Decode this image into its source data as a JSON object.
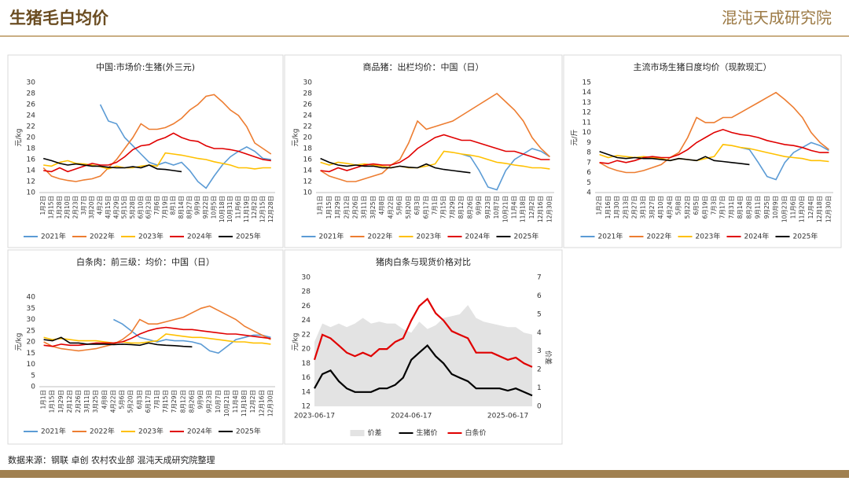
{
  "header": {
    "title": "生猪毛白均价",
    "logo": "混沌天成研究院"
  },
  "footer": {
    "source": "数据来源：钢联 卓创 农村农业部 混沌天成研究院整理"
  },
  "chart_data": [
    {
      "type": "line",
      "title": "中国:市场价:生猪(外三元)",
      "ylabel": "元/kg",
      "ylim": [
        10,
        30
      ],
      "yticks": [
        10,
        12,
        14,
        16,
        18,
        20,
        22,
        24,
        26,
        28,
        30
      ],
      "categories": [
        "1月2日",
        "1月15日",
        "1月28日",
        "2月10日",
        "2月23日",
        "3月7日",
        "3月20日",
        "4月2日",
        "4月15日",
        "4月29日",
        "5月15日",
        "5月28日",
        "6月10日",
        "6月23日",
        "7月6日",
        "7月19日",
        "8月1日",
        "8月14日",
        "8月27日",
        "9月9日",
        "9月22日",
        "10月5日",
        "10月18日",
        "10月31日",
        "11月6日",
        "11月19日",
        "12月2日",
        "12月15日",
        "12月28日"
      ],
      "series": [
        {
          "name": "2021年",
          "color": "#5b9bd5",
          "values": [
            null,
            null,
            null,
            null,
            null,
            null,
            null,
            26,
            23,
            22.5,
            20,
            18.5,
            17,
            15.5,
            15,
            15.5,
            15,
            15.5,
            14,
            12,
            10.8,
            13,
            15,
            16.5,
            17.5,
            18.3,
            17.5,
            16.2,
            16
          ]
        },
        {
          "name": "2022年",
          "color": "#ed7d31",
          "values": [
            14.5,
            13,
            12.5,
            12.2,
            12,
            12.3,
            12.5,
            13,
            14.5,
            16,
            18,
            20,
            22.5,
            21.5,
            21.5,
            21.8,
            22.5,
            23.5,
            25,
            26,
            27.5,
            27.8,
            26.5,
            25,
            24,
            22,
            19,
            18,
            17
          ]
        },
        {
          "name": "2023年",
          "color": "#ffc000",
          "values": [
            15,
            14.8,
            15.5,
            15.8,
            15.3,
            15.2,
            15,
            14.7,
            14.3,
            14.8,
            14.5,
            14.5,
            14.8,
            15,
            14.8,
            17.2,
            17,
            16.8,
            16.5,
            16.2,
            16,
            15.6,
            15.3,
            15,
            14.5,
            14.5,
            14.3,
            14.5,
            14.5
          ]
        },
        {
          "name": "2024年",
          "color": "#e00000",
          "values": [
            14,
            13.8,
            14.5,
            13.8,
            14.3,
            14.8,
            15.3,
            15,
            15,
            15.5,
            16.5,
            17.8,
            18.5,
            18.7,
            19.5,
            20,
            20.8,
            20,
            19.5,
            19.3,
            18.5,
            18,
            18,
            17.8,
            17.5,
            17,
            16.5,
            16,
            15.8
          ]
        },
        {
          "name": "2025年",
          "color": "#000000",
          "values": [
            16.2,
            15.8,
            15.3,
            15,
            15.2,
            15,
            14.8,
            14.8,
            14.6,
            14.5,
            14.5,
            14.7,
            14.5,
            15,
            14.3,
            14.2,
            14,
            13.8,
            null,
            null,
            null,
            null,
            null,
            null,
            null,
            null,
            null,
            null,
            null
          ]
        }
      ]
    },
    {
      "type": "line",
      "title": "商品猪：出栏均价：中国（日）",
      "ylabel": "元/kg",
      "ylim": [
        10,
        30
      ],
      "yticks": [
        10,
        12,
        14,
        16,
        18,
        20,
        22,
        24,
        26,
        28,
        30
      ],
      "categories": [
        "1月1日",
        "1月15日",
        "1月29日",
        "2月12日",
        "2月26日",
        "3月11日",
        "3月25日",
        "4月8日",
        "4月22日",
        "5月6日",
        "5月20日",
        "6月3日",
        "6月17日",
        "7月1日",
        "7月15日",
        "7月29日",
        "8月12日",
        "8月26日",
        "9月9日",
        "9月23日",
        "10月7日",
        "10月21日",
        "11月4日",
        "11月18日",
        "12月2日",
        "12月16日",
        "12月30日"
      ],
      "series": [
        {
          "name": "2021年",
          "color": "#5b9bd5",
          "values": [
            null,
            null,
            null,
            null,
            null,
            null,
            null,
            null,
            null,
            null,
            null,
            null,
            null,
            null,
            null,
            null,
            17,
            16.5,
            14,
            11,
            10.5,
            14,
            16,
            17,
            18,
            17.5,
            16.5
          ]
        },
        {
          "name": "2022年",
          "color": "#ed7d31",
          "values": [
            14,
            13,
            12.5,
            12,
            12,
            12.5,
            13,
            13.5,
            15,
            16,
            19,
            23,
            21.5,
            22,
            22.5,
            23,
            24,
            25,
            26,
            27,
            28,
            26.5,
            25,
            23,
            20,
            18,
            16.5
          ]
        },
        {
          "name": "2023年",
          "color": "#ffc000",
          "values": [
            15.5,
            15,
            15.5,
            15.3,
            15,
            15.2,
            15,
            14.8,
            14.5,
            14.8,
            14.5,
            14.5,
            14.8,
            15.2,
            17.5,
            17.3,
            17,
            16.8,
            16.5,
            16,
            15.5,
            15.3,
            15,
            14.8,
            14.5,
            14.5,
            14.3
          ]
        },
        {
          "name": "2024年",
          "color": "#e00000",
          "values": [
            14,
            13.8,
            14.5,
            14,
            14.5,
            15,
            15.2,
            15,
            15,
            15.5,
            16.5,
            18,
            19,
            20,
            20.5,
            20,
            19.5,
            19.5,
            19,
            18.5,
            18,
            17.5,
            17.5,
            17,
            16.5,
            16,
            16
          ]
        },
        {
          "name": "2025年",
          "color": "#000000",
          "values": [
            16.2,
            15.5,
            15,
            14.8,
            15,
            14.8,
            14.8,
            14.5,
            14.5,
            14.8,
            14.6,
            14.5,
            15.2,
            14.5,
            14.2,
            14,
            13.8,
            13.6,
            null,
            null,
            null,
            null,
            null,
            null,
            null,
            null,
            null
          ]
        }
      ]
    },
    {
      "type": "line",
      "title": "主流市场生猪日度均价（现款现汇）",
      "ylabel": "元/斤",
      "ylim": [
        4,
        15
      ],
      "yticks": [
        4,
        5,
        6,
        7,
        8,
        9,
        10,
        11,
        12,
        13,
        14,
        15
      ],
      "categories": [
        "1月2日",
        "1月16日",
        "1月30日",
        "2月13日",
        "2月27日",
        "3月13日",
        "3月27日",
        "4月10日",
        "4月24日",
        "5月8日",
        "5月22日",
        "6月5日",
        "6月19日",
        "7月3日",
        "7月17日",
        "7月31日",
        "8月14日",
        "8月28日",
        "9月11日",
        "9月25日",
        "10月9日",
        "10月23日",
        "11月6日",
        "11月20日",
        "12月4日",
        "12月18日",
        "12月30日"
      ],
      "series": [
        {
          "name": "2021年",
          "color": "#5b9bd5",
          "values": [
            null,
            null,
            null,
            null,
            null,
            null,
            null,
            null,
            null,
            null,
            null,
            null,
            null,
            null,
            null,
            null,
            8.5,
            8.3,
            7,
            5.6,
            5.3,
            7,
            8,
            8.5,
            9,
            8.7,
            8.2
          ]
        },
        {
          "name": "2022年",
          "color": "#ed7d31",
          "values": [
            7,
            6.5,
            6.2,
            6,
            6,
            6.2,
            6.5,
            6.8,
            7.5,
            8,
            9.5,
            11.5,
            11,
            11,
            11.5,
            11.5,
            12,
            12.5,
            13,
            13.5,
            14,
            13.3,
            12.5,
            11.5,
            10,
            9,
            8.3
          ]
        },
        {
          "name": "2023年",
          "color": "#ffc000",
          "values": [
            7.8,
            7.5,
            7.7,
            7.6,
            7.5,
            7.6,
            7.5,
            7.4,
            7.2,
            7.4,
            7.3,
            7.2,
            7.4,
            7.6,
            8.8,
            8.7,
            8.5,
            8.4,
            8.2,
            8,
            7.8,
            7.6,
            7.5,
            7.4,
            7.2,
            7.2,
            7.1
          ]
        },
        {
          "name": "2024年",
          "color": "#e00000",
          "values": [
            7,
            6.9,
            7.2,
            7,
            7.2,
            7.5,
            7.6,
            7.5,
            7.5,
            7.8,
            8.3,
            9,
            9.5,
            10,
            10.3,
            10,
            9.8,
            9.7,
            9.5,
            9.2,
            9,
            8.8,
            8.7,
            8.5,
            8.2,
            8,
            8
          ]
        },
        {
          "name": "2025年",
          "color": "#000000",
          "values": [
            8.1,
            7.8,
            7.5,
            7.4,
            7.5,
            7.4,
            7.4,
            7.3,
            7.2,
            7.4,
            7.3,
            7.2,
            7.6,
            7.2,
            7.1,
            7,
            6.9,
            6.8,
            null,
            null,
            null,
            null,
            null,
            null,
            null,
            null,
            null
          ]
        }
      ]
    },
    {
      "type": "line",
      "title": "白条肉：前三级：均价：中国（日）",
      "ylabel": "元/kg",
      "ylim": [
        0,
        40
      ],
      "yticks": [
        0,
        5,
        10,
        15,
        20,
        25,
        30,
        35,
        40
      ],
      "categories": [
        "1月1日",
        "1月15日",
        "1月29日",
        "2月12日",
        "2月26日",
        "3月11日",
        "3月25日",
        "4月8日",
        "4月22日",
        "5月6日",
        "5月20日",
        "6月3日",
        "6月17日",
        "7月1日",
        "7月15日",
        "7月29日",
        "8月12日",
        "8月26日",
        "9月9日",
        "9月23日",
        "10月7日",
        "10月21日",
        "11月4日",
        "11月18日",
        "12月2日",
        "12月16日",
        "12月30日"
      ],
      "series": [
        {
          "name": "2021年",
          "color": "#5b9bd5",
          "values": [
            null,
            null,
            null,
            null,
            null,
            null,
            null,
            null,
            30,
            28,
            25,
            22,
            21,
            20,
            21,
            20.5,
            20.5,
            20,
            19,
            16,
            15,
            18,
            21,
            22,
            23,
            23,
            22
          ]
        },
        {
          "name": "2022年",
          "color": "#ed7d31",
          "values": [
            20,
            18,
            17,
            16.5,
            16,
            16.5,
            17,
            18,
            19,
            21,
            24,
            30,
            28,
            28,
            29,
            30,
            31,
            33,
            35,
            36,
            34,
            32,
            30,
            27,
            25,
            23,
            21
          ]
        },
        {
          "name": "2023年",
          "color": "#ffc000",
          "values": [
            22,
            21,
            21.5,
            21,
            20.5,
            20.5,
            20.5,
            20,
            19.5,
            20,
            19.5,
            19.5,
            20,
            20.5,
            23.5,
            23,
            22.5,
            22,
            22,
            21.5,
            21,
            20.5,
            20,
            20,
            19.5,
            19.5,
            19
          ]
        },
        {
          "name": "2024年",
          "color": "#e00000",
          "values": [
            18.5,
            18,
            19,
            18.5,
            18.5,
            19,
            19.5,
            19.5,
            19.5,
            20,
            21.5,
            23.5,
            25,
            26,
            26.5,
            26,
            25.5,
            25.5,
            25,
            24.5,
            24,
            23.5,
            23.5,
            23,
            22.5,
            22,
            21.5
          ]
        },
        {
          "name": "2025年",
          "color": "#000000",
          "values": [
            21,
            20.5,
            22,
            19.5,
            19.5,
            19,
            19,
            19,
            18.8,
            19,
            18.8,
            18.5,
            19.5,
            18.8,
            18.5,
            18.3,
            18,
            17.8,
            null,
            null,
            null,
            null,
            null,
            null,
            null,
            null,
            null
          ]
        }
      ]
    },
    {
      "type": "dual",
      "title": "猪肉白条与现货价格对比",
      "ylabel": "元/kg",
      "y2label": "价差",
      "ylim": [
        12,
        30
      ],
      "yticks": [
        12,
        14,
        16,
        18,
        20,
        22,
        24,
        26,
        28,
        30
      ],
      "y2lim": [
        0,
        7
      ],
      "y2ticks": [
        0,
        1,
        2,
        3,
        4,
        5,
        6,
        7
      ],
      "x": [
        "2023-06-17",
        "2023-07-17",
        "2023-08-17",
        "2023-09-17",
        "2023-10-17",
        "2023-11-17",
        "2023-12-17",
        "2024-01-17",
        "2024-02-17",
        "2024-03-17",
        "2024-04-17",
        "2024-05-17",
        "2024-06-17",
        "2024-07-17",
        "2024-08-17",
        "2024-09-17",
        "2024-10-17",
        "2024-11-17",
        "2024-12-17",
        "2025-01-17",
        "2025-02-17",
        "2025-03-17",
        "2025-04-17",
        "2025-05-17",
        "2025-06-17",
        "2025-07-17",
        "2025-08-17",
        "2025-09-17"
      ],
      "xticks": [
        "2023-06-17",
        "2024-06-17",
        "2025-06-17"
      ],
      "series": [
        {
          "name": "价差",
          "color": "#e3e3e3",
          "kind": "area",
          "axis": "y2",
          "values": [
            3.5,
            4.5,
            4.3,
            4.5,
            4.3,
            4.5,
            4.8,
            4.5,
            4.6,
            4.5,
            4.5,
            4.2,
            4,
            4.6,
            4.2,
            4.4,
            4.8,
            4.9,
            5,
            5.5,
            4.8,
            4.6,
            4.5,
            4.4,
            4.3,
            4.3,
            4,
            3.9
          ]
        },
        {
          "name": "生猪价",
          "color": "#000000",
          "kind": "line",
          "values": [
            14.5,
            16.5,
            17,
            15.5,
            14.5,
            14,
            14,
            14,
            14.5,
            14.5,
            15,
            16,
            18.5,
            19.5,
            20.5,
            19,
            18,
            16.5,
            16,
            15.5,
            14.5,
            14.5,
            14.5,
            14.5,
            14.2,
            14.5,
            14,
            13.5
          ]
        },
        {
          "name": "白条价",
          "color": "#e00000",
          "kind": "line",
          "values": [
            18.5,
            22,
            21.5,
            20.5,
            19.5,
            19,
            19.5,
            19,
            20,
            20,
            21,
            21.5,
            24,
            26,
            27,
            25,
            24,
            22.5,
            22,
            21.5,
            19.5,
            19.5,
            19.5,
            19,
            18.5,
            18.8,
            18,
            17.5
          ]
        }
      ]
    }
  ]
}
